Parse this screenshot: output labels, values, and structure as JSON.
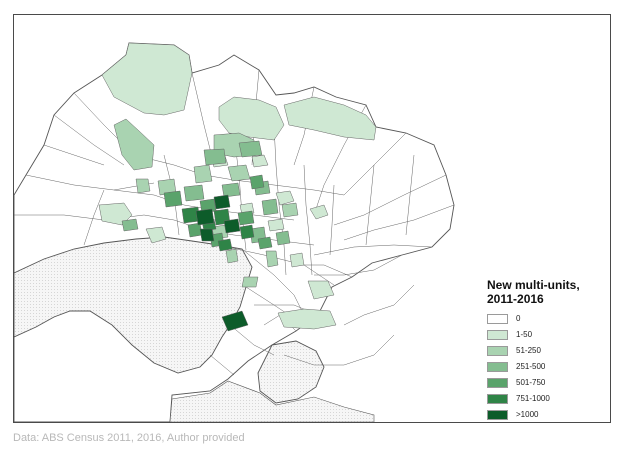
{
  "legend": {
    "title": "New multi-units,\n2011-2016",
    "items": [
      {
        "label": "0",
        "color": "#ffffff"
      },
      {
        "label": "1-50",
        "color": "#cfe8d3"
      },
      {
        "label": "51-250",
        "color": "#a9d3b1"
      },
      {
        "label": "251-500",
        "color": "#84bd90"
      },
      {
        "label": "501-750",
        "color": "#5aa36b"
      },
      {
        "label": "751-1000",
        "color": "#2f8447"
      },
      {
        "label": ">1000",
        "color": "#0d5c2a"
      }
    ]
  },
  "caption": "Data: ABS Census 2011, 2016, Author provided",
  "colors": {
    "water": "#e9e9e9",
    "border": "#555555"
  }
}
